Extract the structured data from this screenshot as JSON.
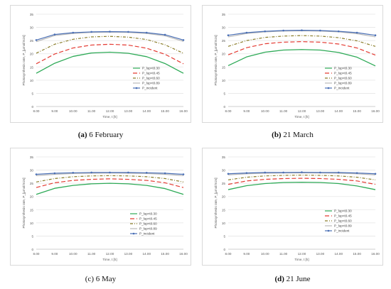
{
  "chart_data": [
    {
      "type": "line",
      "caption_letter": "(a)",
      "caption_text": " 6 February",
      "xlabel": "Time, t [h]",
      "ylabel": "Photosynthesis rate, P_[μmol/m2s]",
      "xlim": [
        8,
        16
      ],
      "ylim": [
        0,
        35
      ],
      "x_ticks": [
        "8.00",
        "9.00",
        "10.00",
        "11.00",
        "12.00",
        "13.00",
        "14.00",
        "15.00",
        "16.00"
      ],
      "y_ticks": [
        "0",
        "5",
        "10",
        "15",
        "20",
        "25",
        "30",
        "35"
      ],
      "grid": true,
      "legend_position": "right-center",
      "x": [
        8,
        9,
        10,
        11,
        12,
        13,
        14,
        15,
        16
      ],
      "series": [
        {
          "name": "P_lup<t0.30",
          "color": "#2eaa57",
          "dash": "",
          "marker": "none",
          "values": [
            12.6,
            16.4,
            19.0,
            20.3,
            20.6,
            20.2,
            18.9,
            16.3,
            12.6
          ]
        },
        {
          "name": "P_lup<t0.45",
          "color": "#e43a32",
          "dash": "6,3",
          "marker": "none",
          "values": [
            16.2,
            19.9,
            22.2,
            23.3,
            23.6,
            23.3,
            22.1,
            19.8,
            16.2
          ]
        },
        {
          "name": "P_lup<t0.60",
          "color": "#8a7d2a",
          "dash": "4,2,1,2",
          "marker": "none",
          "values": [
            20.2,
            23.6,
            25.5,
            26.4,
            26.6,
            26.3,
            25.4,
            23.4,
            20.2
          ]
        },
        {
          "name": "P_lup<t0.89",
          "color": "#b9b9b9",
          "dash": "",
          "marker": "none",
          "values": [
            24.6,
            26.9,
            27.7,
            28.1,
            28.2,
            28.1,
            27.7,
            26.8,
            24.7
          ]
        },
        {
          "name": "P_incident",
          "color": "#4a6fb5",
          "dash": "",
          "marker": "dot",
          "values": [
            25.2,
            27.3,
            28.0,
            28.3,
            28.4,
            28.3,
            28.0,
            27.2,
            25.2
          ]
        }
      ]
    },
    {
      "type": "line",
      "caption_letter": "(b)",
      "caption_text": " 21 March",
      "xlabel": "Time, t [h]",
      "ylabel": "Photosynthesis rate, P_[μmol/m2s]",
      "xlim": [
        8,
        16
      ],
      "ylim": [
        0,
        35
      ],
      "x_ticks": [
        "8.00",
        "9.00",
        "10.00",
        "11.00",
        "12.00",
        "13.00",
        "14.00",
        "15.00",
        "16.00"
      ],
      "y_ticks": [
        "0",
        "5",
        "10",
        "15",
        "20",
        "25",
        "30",
        "35"
      ],
      "grid": true,
      "legend_position": "right-center",
      "x": [
        8,
        9,
        10,
        11,
        12,
        13,
        14,
        15,
        16
      ],
      "series": [
        {
          "name": "P_lup<t0.30",
          "color": "#2eaa57",
          "dash": "",
          "marker": "none",
          "values": [
            15.5,
            18.8,
            20.6,
            21.4,
            21.6,
            21.4,
            20.5,
            18.7,
            15.4
          ]
        },
        {
          "name": "P_lup<t0.45",
          "color": "#e43a32",
          "dash": "6,3",
          "marker": "none",
          "values": [
            19.6,
            22.3,
            23.8,
            24.4,
            24.6,
            24.4,
            23.7,
            22.2,
            19.5
          ]
        },
        {
          "name": "P_lup<t0.60",
          "color": "#8a7d2a",
          "dash": "4,2,1,2",
          "marker": "none",
          "values": [
            22.8,
            25.0,
            26.2,
            26.7,
            26.9,
            26.7,
            26.1,
            24.9,
            22.8
          ]
        },
        {
          "name": "P_lup<t0.89",
          "color": "#b9b9b9",
          "dash": "",
          "marker": "none",
          "values": [
            26.4,
            27.7,
            28.3,
            28.6,
            28.7,
            28.6,
            28.3,
            27.6,
            26.4
          ]
        },
        {
          "name": "P_incident",
          "color": "#4a6fb5",
          "dash": "",
          "marker": "dot",
          "values": [
            27.0,
            28.0,
            28.5,
            28.8,
            28.9,
            28.8,
            28.5,
            28.0,
            27.0
          ]
        }
      ]
    },
    {
      "type": "line",
      "caption_letter": "(c)",
      "caption_text": " 6 May",
      "xlabel": "Time, t [h]",
      "ylabel": "Photosynthesis rate, P_[μmol/m2s]",
      "xlim": [
        8,
        16
      ],
      "ylim": [
        0,
        35
      ],
      "x_ticks": [
        "8.00",
        "9.00",
        "10.00",
        "11.00",
        "12.00",
        "13.00",
        "14.00",
        "15.00",
        "16.00"
      ],
      "y_ticks": [
        "0",
        "5",
        "10",
        "15",
        "20",
        "25",
        "30",
        "35"
      ],
      "grid": true,
      "legend_position": "bottom-right",
      "x": [
        8,
        9,
        10,
        11,
        12,
        13,
        14,
        15,
        16
      ],
      "series": [
        {
          "name": "P_lup<t0.30",
          "color": "#2eaa57",
          "dash": "",
          "marker": "none",
          "values": [
            20.8,
            23.1,
            24.2,
            24.8,
            25.0,
            24.8,
            24.2,
            23.0,
            20.8
          ]
        },
        {
          "name": "P_lup<t0.45",
          "color": "#e43a32",
          "dash": "6,3",
          "marker": "none",
          "values": [
            23.4,
            25.2,
            26.1,
            26.5,
            26.7,
            26.5,
            26.1,
            25.2,
            23.4
          ]
        },
        {
          "name": "P_lup<t0.60",
          "color": "#8a7d2a",
          "dash": "4,2,1,2",
          "marker": "none",
          "values": [
            25.5,
            26.8,
            27.5,
            27.8,
            27.9,
            27.8,
            27.5,
            26.8,
            25.5
          ]
        },
        {
          "name": "P_lup<t0.89",
          "color": "#b9b9b9",
          "dash": "",
          "marker": "none",
          "values": [
            27.9,
            28.4,
            28.7,
            28.8,
            28.9,
            28.8,
            28.7,
            28.4,
            27.9
          ]
        },
        {
          "name": "P_incident",
          "color": "#4a6fb5",
          "dash": "",
          "marker": "dot",
          "values": [
            28.4,
            28.8,
            29.0,
            29.1,
            29.1,
            29.1,
            29.0,
            28.8,
            28.4
          ]
        }
      ]
    },
    {
      "type": "line",
      "caption_letter": "(d)",
      "caption_text": " 21 June",
      "xlabel": "Time, t [h]",
      "ylabel": "Photosynthesis rate, P_[μmol/m2s]",
      "xlim": [
        8,
        16
      ],
      "ylim": [
        0,
        35
      ],
      "x_ticks": [
        "8.00",
        "9.00",
        "10.00",
        "11.00",
        "12.00",
        "13.00",
        "14.00",
        "15.00",
        "16.00"
      ],
      "y_ticks": [
        "0",
        "5",
        "10",
        "15",
        "20",
        "25",
        "30",
        "35"
      ],
      "grid": true,
      "legend_position": "right-center",
      "x": [
        8,
        9,
        10,
        11,
        12,
        13,
        14,
        15,
        16
      ],
      "series": [
        {
          "name": "P_lup<t0.30",
          "color": "#2eaa57",
          "dash": "",
          "marker": "none",
          "values": [
            22.6,
            24.1,
            24.9,
            25.3,
            25.4,
            25.3,
            24.9,
            24.0,
            22.6
          ]
        },
        {
          "name": "P_lup<t0.45",
          "color": "#e43a32",
          "dash": "6,3",
          "marker": "none",
          "values": [
            24.6,
            25.9,
            26.5,
            26.8,
            26.9,
            26.8,
            26.5,
            25.9,
            24.6
          ]
        },
        {
          "name": "P_lup<t0.60",
          "color": "#8a7d2a",
          "dash": "4,2,1,2",
          "marker": "none",
          "values": [
            26.3,
            27.3,
            27.8,
            28.0,
            28.1,
            28.0,
            27.8,
            27.3,
            26.3
          ]
        },
        {
          "name": "P_lup<t0.89",
          "color": "#b9b9b9",
          "dash": "",
          "marker": "none",
          "values": [
            28.2,
            28.6,
            28.8,
            28.9,
            28.9,
            28.9,
            28.8,
            28.6,
            28.2
          ]
        },
        {
          "name": "P_incident",
          "color": "#4a6fb5",
          "dash": "",
          "marker": "dot",
          "values": [
            28.6,
            28.9,
            29.1,
            29.1,
            29.2,
            29.1,
            29.1,
            28.9,
            28.6
          ]
        }
      ]
    }
  ]
}
